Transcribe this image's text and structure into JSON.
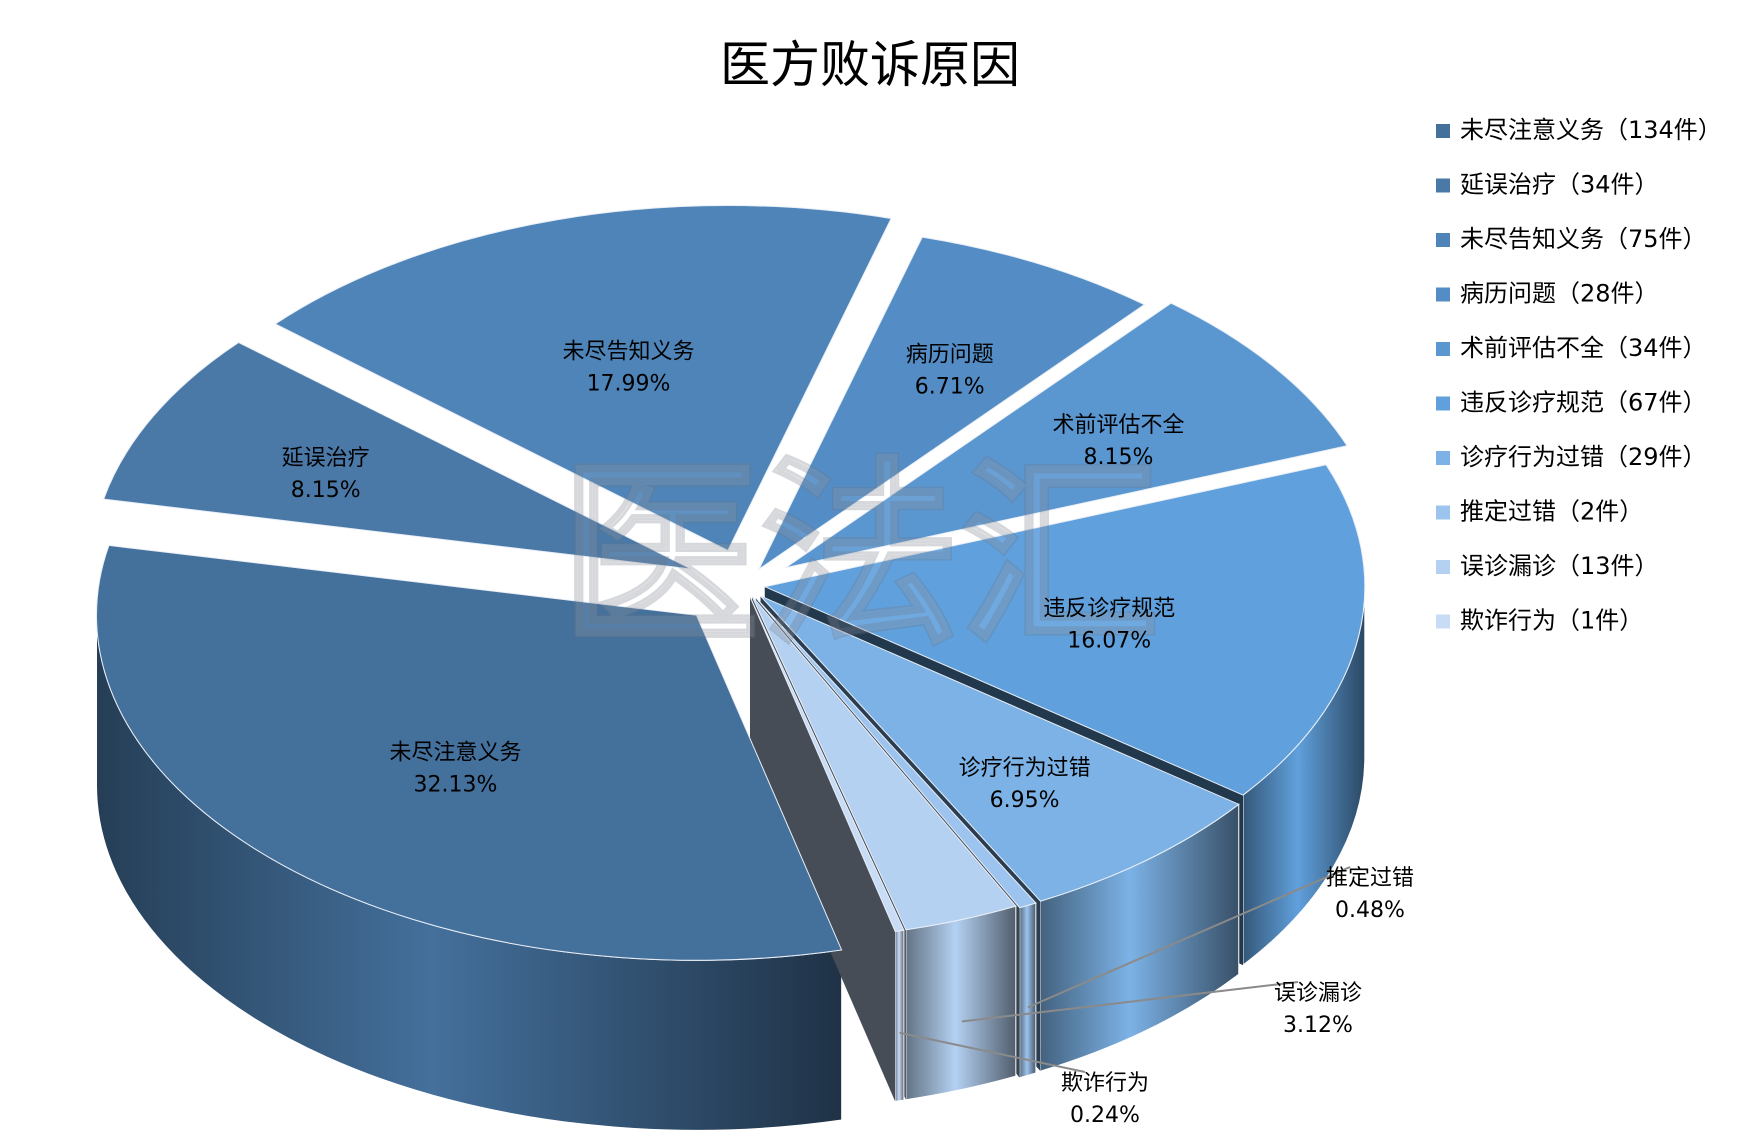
{
  "title": "医方败诉原因",
  "watermark": "医法汇",
  "chart_data": {
    "type": "pie",
    "title": "医方败诉原因",
    "legend_position": "right",
    "slices": [
      {
        "name": "未尽注意义务",
        "label": "未尽注意义务",
        "pct": "32.13%",
        "value": 134,
        "legend": "未尽注意义务（134件）",
        "color": "#44709c"
      },
      {
        "name": "延误治疗",
        "label": "延误治疗",
        "pct": "8.15%",
        "value": 34,
        "legend": "延误治疗（34件）",
        "color": "#4a79a8"
      },
      {
        "name": "未尽告知义务",
        "label": "未尽告知义务",
        "pct": "17.99%",
        "value": 75,
        "legend": "未尽告知义务（75件）",
        "color": "#4e84b8"
      },
      {
        "name": "病历问题",
        "label": "病历问题",
        "pct": "6.71%",
        "value": 28,
        "legend": "病历问题（28件）",
        "color": "#548dc5"
      },
      {
        "name": "术前评估不全",
        "label": "术前评估不全",
        "pct": "8.15%",
        "value": 34,
        "legend": "术前评估不全（34件）",
        "color": "#5a96d0"
      },
      {
        "name": "违反诊疗规范",
        "label": "违反诊疗规范",
        "pct": "16.07%",
        "value": 67,
        "legend": "违反诊疗规范（67件）",
        "color": "#60a0dc"
      },
      {
        "name": "诊疗行为过错",
        "label": "诊疗行为过错",
        "pct": "6.95%",
        "value": 29,
        "legend": "诊疗行为过错（29件）",
        "color": "#7cb2e6"
      },
      {
        "name": "推定过错",
        "label": "推定过错",
        "pct": "0.48%",
        "value": 2,
        "legend": "推定过错（2件）",
        "color": "#9dc4ee"
      },
      {
        "name": "误诊漏诊",
        "label": "误诊漏诊",
        "pct": "3.12%",
        "value": 13,
        "legend": "误诊漏诊（13件）",
        "color": "#b4d1f2"
      },
      {
        "name": "欺诈行为",
        "label": "欺诈行为",
        "pct": "0.24%",
        "value": 1,
        "legend": "欺诈行为（1件）",
        "color": "#c8dcf6"
      }
    ]
  }
}
